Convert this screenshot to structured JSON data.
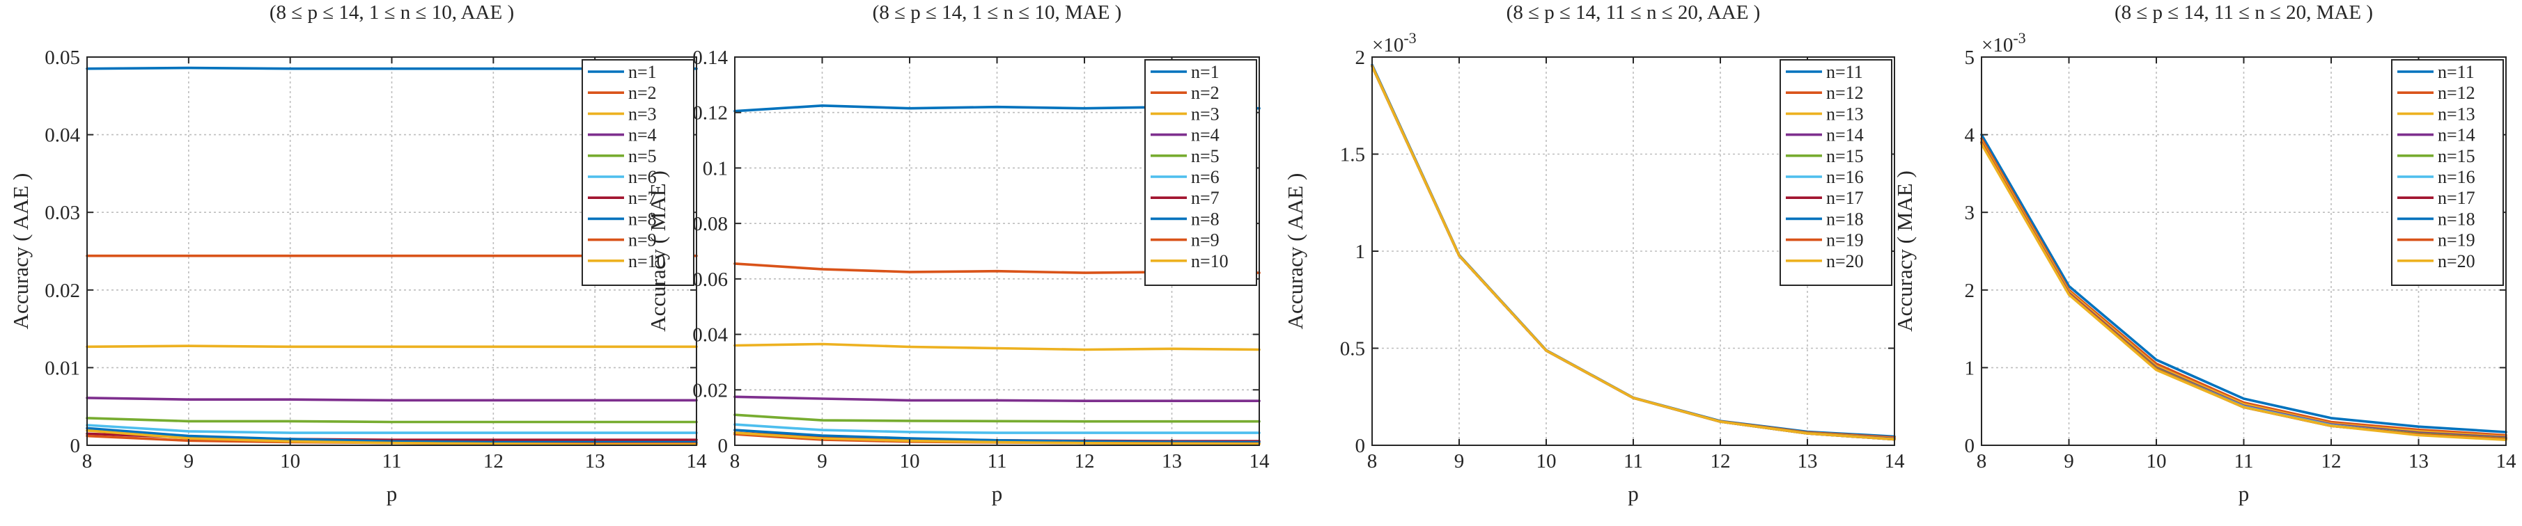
{
  "colors": {
    "axis": "#262626",
    "grid": "#bdbdbd",
    "series": [
      "#0072BD",
      "#D95319",
      "#EDB120",
      "#7E2F8E",
      "#77AC30",
      "#4DBEEE",
      "#A2142F",
      "#0072BD",
      "#D95319",
      "#EDB120"
    ]
  },
  "chart_data": [
    {
      "type": "line",
      "title": "(8 ≤ p ≤ 14, 1 ≤ n ≤ 10, AAE )",
      "xlabel": "p",
      "ylabel": "Accuracy ( AAE )",
      "xlim": [
        8,
        14
      ],
      "ylim": [
        0,
        0.05
      ],
      "x": [
        8,
        9,
        10,
        11,
        12,
        13,
        14
      ],
      "xticks": [
        "8",
        "9",
        "10",
        "11",
        "12",
        "13",
        "14"
      ],
      "yticks": [
        0,
        0.01,
        0.02,
        0.03,
        0.04,
        0.05
      ],
      "yticklabels": [
        "0",
        "0.01",
        "0.02",
        "0.03",
        "0.04",
        "0.05"
      ],
      "exponent_label": "",
      "grid": true,
      "legend_position": "top-right",
      "series": [
        {
          "name": "n=1",
          "values": [
            0.0485,
            0.0486,
            0.0485,
            0.0485,
            0.0485,
            0.0485,
            0.0485
          ]
        },
        {
          "name": "n=2",
          "values": [
            0.0244,
            0.0244,
            0.0244,
            0.0244,
            0.0244,
            0.0244,
            0.0244
          ]
        },
        {
          "name": "n=3",
          "values": [
            0.0127,
            0.0128,
            0.0127,
            0.0127,
            0.0127,
            0.0127,
            0.0127
          ]
        },
        {
          "name": "n=4",
          "values": [
            0.0061,
            0.0059,
            0.0059,
            0.0058,
            0.0058,
            0.0058,
            0.0058
          ]
        },
        {
          "name": "n=5",
          "values": [
            0.0035,
            0.0031,
            0.0031,
            0.003,
            0.003,
            0.003,
            0.003
          ]
        },
        {
          "name": "n=6",
          "values": [
            0.0026,
            0.0018,
            0.0016,
            0.0016,
            0.0016,
            0.0016,
            0.0016
          ]
        },
        {
          "name": "n=7",
          "values": [
            0.0015,
            0.001,
            0.0008,
            0.0007,
            0.0007,
            0.0007,
            0.0007
          ]
        },
        {
          "name": "n=8",
          "values": [
            0.0022,
            0.0012,
            0.0008,
            0.0005,
            0.0004,
            0.0004,
            0.0004
          ]
        },
        {
          "name": "n=9",
          "values": [
            0.0012,
            0.0006,
            0.0004,
            0.0003,
            0.0002,
            0.0002,
            0.0002
          ]
        },
        {
          "name": "n=10",
          "values": [
            0.0019,
            0.0009,
            0.0005,
            0.0003,
            0.0002,
            0.0001,
            0.0001
          ]
        }
      ]
    },
    {
      "type": "line",
      "title": "(8 ≤ p ≤ 14, 1 ≤ n ≤ 10, MAE )",
      "xlabel": "p",
      "ylabel": "Accuracy ( MAE )",
      "xlim": [
        8,
        14
      ],
      "ylim": [
        0,
        0.14
      ],
      "x": [
        8,
        9,
        10,
        11,
        12,
        13,
        14
      ],
      "xticks": [
        "8",
        "9",
        "10",
        "11",
        "12",
        "13",
        "14"
      ],
      "yticks": [
        0,
        0.02,
        0.04,
        0.06,
        0.08,
        0.1,
        0.12,
        0.14
      ],
      "yticklabels": [
        "0",
        "0.02",
        "0.04",
        "0.06",
        "0.08",
        "0.1",
        "0.12",
        "0.14"
      ],
      "exponent_label": "",
      "grid": true,
      "legend_position": "top-right",
      "series": [
        {
          "name": "n=1",
          "values": [
            0.1205,
            0.1225,
            0.1215,
            0.122,
            0.1215,
            0.122,
            0.1215
          ]
        },
        {
          "name": "n=2",
          "values": [
            0.0655,
            0.0635,
            0.0625,
            0.0628,
            0.0622,
            0.0625,
            0.0622
          ]
        },
        {
          "name": "n=3",
          "values": [
            0.036,
            0.0365,
            0.0355,
            0.035,
            0.0345,
            0.0348,
            0.0345
          ]
        },
        {
          "name": "n=4",
          "values": [
            0.0175,
            0.0168,
            0.0162,
            0.0162,
            0.016,
            0.016,
            0.016
          ]
        },
        {
          "name": "n=5",
          "values": [
            0.011,
            0.009,
            0.0088,
            0.0087,
            0.0086,
            0.0086,
            0.0086
          ]
        },
        {
          "name": "n=6",
          "values": [
            0.0075,
            0.0055,
            0.0048,
            0.0045,
            0.0045,
            0.0045,
            0.0045
          ]
        },
        {
          "name": "n=7",
          "values": [
            0.0045,
            0.003,
            0.0022,
            0.0018,
            0.0016,
            0.0015,
            0.0015
          ]
        },
        {
          "name": "n=8",
          "values": [
            0.0055,
            0.0035,
            0.0025,
            0.0018,
            0.0014,
            0.0012,
            0.0011
          ]
        },
        {
          "name": "n=9",
          "values": [
            0.004,
            0.002,
            0.0013,
            0.001,
            0.0008,
            0.0007,
            0.0006
          ]
        },
        {
          "name": "n=10",
          "values": [
            0.0045,
            0.0025,
            0.0016,
            0.0011,
            0.0008,
            0.0006,
            0.0005
          ]
        }
      ]
    },
    {
      "type": "line",
      "title": "(8 ≤ p ≤ 14, 11 ≤ n ≤ 20, AAE )",
      "xlabel": "p",
      "ylabel": "Accuracy ( AAE )",
      "xlim": [
        8,
        14
      ],
      "ylim": [
        0,
        2
      ],
      "x": [
        8,
        9,
        10,
        11,
        12,
        13,
        14
      ],
      "xticks": [
        "8",
        "9",
        "10",
        "11",
        "12",
        "13",
        "14"
      ],
      "yticks": [
        0,
        0.5,
        1,
        1.5,
        2
      ],
      "yticklabels": [
        "0",
        "0.5",
        "1",
        "1.5",
        "2"
      ],
      "exponent_label": "×10",
      "exponent_power": "-3",
      "grid": true,
      "legend_position": "top-right",
      "series": [
        {
          "name": "n=11",
          "values": [
            1.96,
            0.98,
            0.49,
            0.245,
            0.125,
            0.07,
            0.045
          ]
        },
        {
          "name": "n=12",
          "values": [
            1.955,
            0.977,
            0.488,
            0.244,
            0.123,
            0.066,
            0.04
          ]
        },
        {
          "name": "n=13",
          "values": [
            1.955,
            0.977,
            0.488,
            0.244,
            0.122,
            0.063,
            0.036
          ]
        },
        {
          "name": "n=14",
          "values": [
            1.953,
            0.977,
            0.488,
            0.244,
            0.122,
            0.062,
            0.034
          ]
        },
        {
          "name": "n=15",
          "values": [
            1.953,
            0.977,
            0.488,
            0.244,
            0.122,
            0.062,
            0.032
          ]
        },
        {
          "name": "n=16",
          "values": [
            1.953,
            0.977,
            0.488,
            0.244,
            0.122,
            0.061,
            0.031
          ]
        },
        {
          "name": "n=17",
          "values": [
            1.953,
            0.977,
            0.488,
            0.244,
            0.122,
            0.061,
            0.031
          ]
        },
        {
          "name": "n=18",
          "values": [
            1.953,
            0.977,
            0.488,
            0.244,
            0.122,
            0.061,
            0.031
          ]
        },
        {
          "name": "n=19",
          "values": [
            1.953,
            0.977,
            0.488,
            0.244,
            0.122,
            0.061,
            0.031
          ]
        },
        {
          "name": "n=20",
          "values": [
            1.953,
            0.977,
            0.488,
            0.244,
            0.122,
            0.061,
            0.031
          ]
        }
      ]
    },
    {
      "type": "line",
      "title": "(8 ≤ p ≤ 14, 11 ≤ n ≤ 20, MAE )",
      "xlabel": "p",
      "ylabel": "Accuracy ( MAE )",
      "xlim": [
        8,
        14
      ],
      "ylim": [
        0,
        5
      ],
      "x": [
        8,
        9,
        10,
        11,
        12,
        13,
        14
      ],
      "xticks": [
        "8",
        "9",
        "10",
        "11",
        "12",
        "13",
        "14"
      ],
      "yticks": [
        0,
        1,
        2,
        3,
        4,
        5
      ],
      "yticklabels": [
        "0",
        "1",
        "2",
        "3",
        "4",
        "5"
      ],
      "exponent_label": "×10",
      "exponent_power": "-3",
      "grid": true,
      "legend_position": "top-right",
      "series": [
        {
          "name": "n=11",
          "values": [
            4.0,
            2.05,
            1.1,
            0.6,
            0.35,
            0.24,
            0.17
          ]
        },
        {
          "name": "n=12",
          "values": [
            3.95,
            2.0,
            1.05,
            0.55,
            0.3,
            0.2,
            0.13
          ]
        },
        {
          "name": "n=13",
          "values": [
            3.92,
            1.98,
            1.02,
            0.53,
            0.28,
            0.18,
            0.11
          ]
        },
        {
          "name": "n=14",
          "values": [
            3.9,
            1.96,
            1.0,
            0.51,
            0.27,
            0.16,
            0.1
          ]
        },
        {
          "name": "n=15",
          "values": [
            3.9,
            1.95,
            0.99,
            0.5,
            0.26,
            0.15,
            0.09
          ]
        },
        {
          "name": "n=16",
          "values": [
            3.9,
            1.95,
            0.98,
            0.5,
            0.26,
            0.14,
            0.08
          ]
        },
        {
          "name": "n=17",
          "values": [
            3.9,
            1.95,
            0.98,
            0.49,
            0.25,
            0.14,
            0.08
          ]
        },
        {
          "name": "n=18",
          "values": [
            3.9,
            1.95,
            0.98,
            0.49,
            0.25,
            0.14,
            0.08
          ]
        },
        {
          "name": "n=19",
          "values": [
            3.9,
            1.95,
            0.98,
            0.49,
            0.25,
            0.14,
            0.08
          ]
        },
        {
          "name": "n=20",
          "values": [
            3.88,
            1.94,
            0.97,
            0.49,
            0.25,
            0.13,
            0.07
          ]
        }
      ]
    }
  ]
}
